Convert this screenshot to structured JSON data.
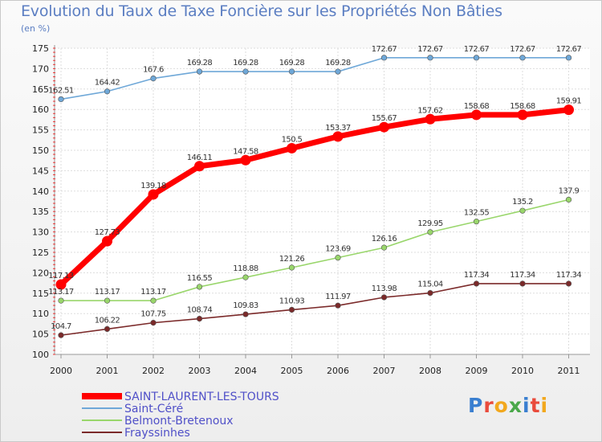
{
  "title": "Evolution du Taux de Taxe Foncière sur les Propriétés Non Bâties",
  "unit_label": "(en %)",
  "logo": {
    "text": "Proxiti",
    "colors": [
      "#3a7fd0",
      "#e94b3c",
      "#f2a81d",
      "#4aa84a",
      "#3a7fd0",
      "#e94b3c",
      "#f2a81d"
    ]
  },
  "chart_data": {
    "type": "line",
    "x": [
      "2000",
      "2001",
      "2002",
      "2003",
      "2004",
      "2005",
      "2006",
      "2007",
      "2008",
      "2009",
      "2010",
      "2011"
    ],
    "ylim": [
      100,
      175
    ],
    "yticks": [
      "100",
      "105",
      "110",
      "115",
      "120",
      "125",
      "130",
      "135",
      "140",
      "145",
      "150",
      "155",
      "160",
      "165",
      "170",
      "175"
    ],
    "grid": true,
    "legend_position": "bottom-left",
    "series": [
      {
        "name": "SAINT-LAURENT-LES-TOURS",
        "color": "#ff0000",
        "emphasis": true,
        "values": [
          117.13,
          127.73,
          139.18,
          146.11,
          147.58,
          150.5,
          153.37,
          155.67,
          157.62,
          158.68,
          158.68,
          159.91
        ],
        "labels": [
          "117.13",
          "127.73",
          "139.18",
          "146.11",
          "147.58",
          "150.5",
          "153.37",
          "155.67",
          "157.62",
          "158.68",
          "158.68",
          "159.91"
        ]
      },
      {
        "name": "Saint-Céré",
        "color": "#6fa8d8",
        "emphasis": false,
        "values": [
          162.51,
          164.42,
          167.6,
          169.28,
          169.28,
          169.28,
          169.28,
          172.67,
          172.67,
          172.67,
          172.67,
          172.67
        ],
        "labels": [
          "162.51",
          "164.42",
          "167.6",
          "169.28",
          "169.28",
          "169.28",
          "169.28",
          "172.67",
          "172.67",
          "172.67",
          "172.67",
          "172.67"
        ]
      },
      {
        "name": "Belmont-Bretenoux",
        "color": "#99d66b",
        "emphasis": false,
        "values": [
          113.17,
          113.17,
          113.17,
          116.55,
          118.88,
          121.26,
          123.69,
          126.16,
          129.95,
          132.55,
          135.2,
          137.9
        ],
        "labels": [
          "113.17",
          "113.17",
          "113.17",
          "116.55",
          "118.88",
          "121.26",
          "123.69",
          "126.16",
          "129.95",
          "132.55",
          "135.2",
          "137.9"
        ]
      },
      {
        "name": "Frayssinhes",
        "color": "#7b2a2a",
        "emphasis": false,
        "values": [
          104.7,
          106.22,
          107.75,
          108.74,
          109.83,
          110.93,
          111.97,
          113.98,
          115.04,
          117.34,
          117.34,
          117.34
        ],
        "labels": [
          "104.7",
          "106.22",
          "107.75",
          "108.74",
          "109.83",
          "110.93",
          "111.97",
          "113.98",
          "115.04",
          "117.34",
          "117.34",
          "117.34"
        ]
      }
    ]
  }
}
